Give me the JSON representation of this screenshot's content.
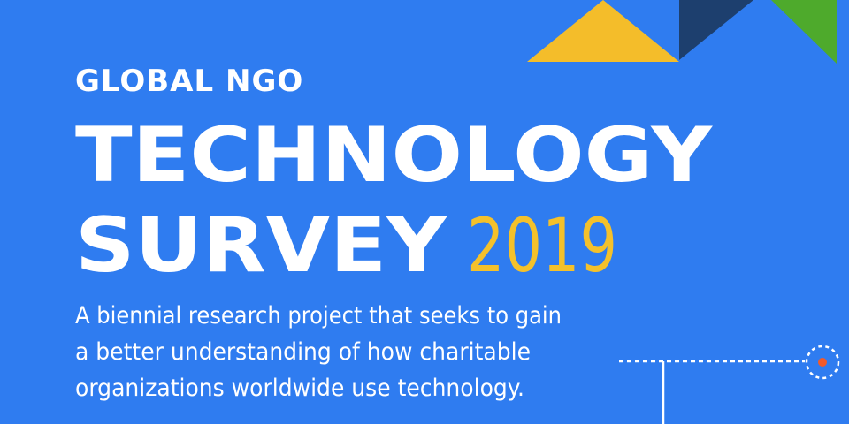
{
  "header": {
    "kicker": "GLOBAL NGO",
    "title_line1": "TECHNOLOGY",
    "title_line2": "SURVEY",
    "year": "2019"
  },
  "description": {
    "lines": [
      "A biennial research project that seeks to gain",
      "a better understanding of how charitable",
      "organizations worldwide use technology."
    ]
  }
}
